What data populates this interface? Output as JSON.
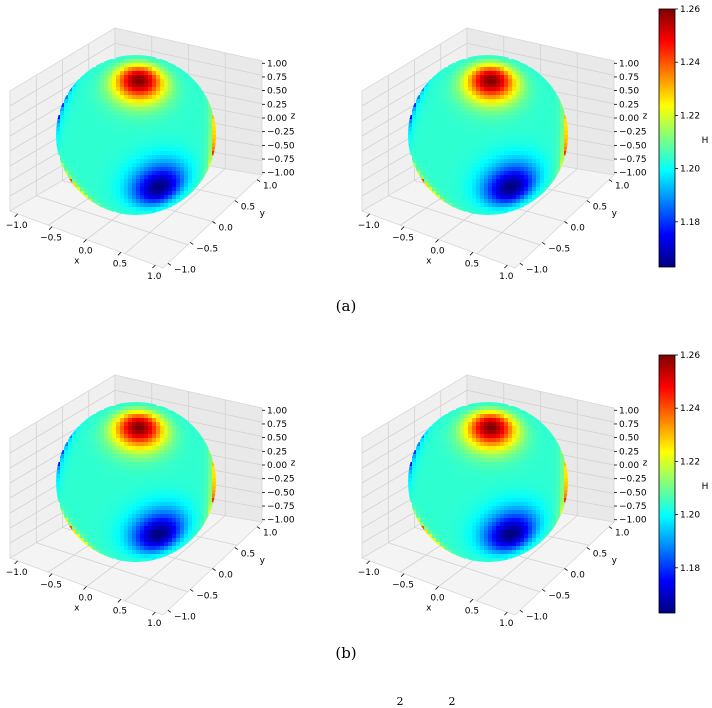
{
  "figure": {
    "captions": [
      "(a)",
      "(b)"
    ],
    "bottom_fragment": [
      "2",
      "2"
    ]
  },
  "colorscale": {
    "name": "jet",
    "stops": [
      "#00007f",
      "#0000ff",
      "#007fff",
      "#00ffff",
      "#7fff7f",
      "#ffff00",
      "#ff7f00",
      "#ff0000",
      "#7f0000"
    ]
  },
  "chart_data": [
    {
      "type": "surface",
      "panel": "a-left",
      "shape": "sphere",
      "xlabel": "x",
      "ylabel": "y",
      "zlabel": "z",
      "xlim": [
        -1.0,
        1.0
      ],
      "ylim": [
        -1.0,
        1.0
      ],
      "zlim": [
        -1.0,
        1.0
      ],
      "x_ticks": [
        "−1.0",
        "−0.5",
        "0.0",
        "0.5",
        "1.0"
      ],
      "y_ticks": [
        "−1.0",
        "−0.5",
        "0.0",
        "0.5",
        "1.0"
      ],
      "z_ticks": [
        "1.00",
        "0.75",
        "0.50",
        "0.25",
        "0.00",
        "−0.25",
        "−0.50",
        "−0.75",
        "−1.00"
      ],
      "grid": true,
      "color_variable": "H",
      "hot_spots": [
        {
          "theta": 0.16,
          "phi": -0.4
        },
        {
          "theta": 2.25,
          "phi": -1.9
        },
        {
          "theta": 1.65,
          "phi": 0.95
        }
      ],
      "cold_spots": [
        {
          "theta": 1.65,
          "phi": -0.35
        },
        {
          "theta": 1.45,
          "phi": -2.55
        },
        {
          "theta": 1.6,
          "phi": 2.2
        },
        {
          "theta": 2.9,
          "phi": 0.3
        }
      ]
    },
    {
      "type": "surface",
      "panel": "a-right",
      "shape": "sphere",
      "xlabel": "x",
      "ylabel": "y",
      "zlabel": "z",
      "xlim": [
        -1.0,
        1.0
      ],
      "ylim": [
        -1.0,
        1.0
      ],
      "zlim": [
        -1.0,
        1.0
      ],
      "x_ticks": [
        "−1.0",
        "−0.5",
        "0.0",
        "0.5",
        "1.0"
      ],
      "y_ticks": [
        "−1.0",
        "−0.5",
        "0.0",
        "0.5",
        "1.0"
      ],
      "z_ticks": [
        "1.00",
        "0.75",
        "0.50",
        "0.25",
        "0.00",
        "−0.25",
        "−0.50",
        "−0.75",
        "−1.00"
      ],
      "grid": true,
      "color_variable": "H",
      "hot_spots": [
        {
          "theta": 0.16,
          "phi": -0.4
        },
        {
          "theta": 2.25,
          "phi": -1.9
        },
        {
          "theta": 1.65,
          "phi": 0.95
        }
      ],
      "cold_spots": [
        {
          "theta": 1.65,
          "phi": -0.35
        },
        {
          "theta": 1.45,
          "phi": -2.55
        },
        {
          "theta": 1.6,
          "phi": 2.2
        },
        {
          "theta": 2.9,
          "phi": 0.3
        }
      ]
    },
    {
      "type": "colorbar",
      "panel": "a-colorbar",
      "label": "H",
      "range": [
        1.163,
        1.26
      ],
      "ticks": [
        "1.26",
        "1.24",
        "1.22",
        "1.20",
        "1.18"
      ],
      "tick_values": [
        1.26,
        1.24,
        1.22,
        1.2,
        1.18
      ]
    },
    {
      "type": "surface",
      "panel": "b-left",
      "shape": "sphere",
      "xlabel": "x",
      "ylabel": "y",
      "zlabel": "z",
      "xlim": [
        -1.0,
        1.0
      ],
      "ylim": [
        -1.0,
        1.0
      ],
      "zlim": [
        -1.0,
        1.0
      ],
      "x_ticks": [
        "−1.0",
        "−0.5",
        "0.0",
        "0.5",
        "1.0"
      ],
      "y_ticks": [
        "−1.0",
        "−0.5",
        "0.0",
        "0.5",
        "1.0"
      ],
      "z_ticks": [
        "1.00",
        "0.75",
        "0.50",
        "0.25",
        "0.00",
        "−0.25",
        "−0.50",
        "−0.75",
        "−1.00"
      ],
      "grid": true,
      "color_variable": "H",
      "hot_spots": [
        {
          "theta": 0.16,
          "phi": -0.4
        },
        {
          "theta": 2.25,
          "phi": -1.9
        },
        {
          "theta": 1.65,
          "phi": 0.95
        }
      ],
      "cold_spots": [
        {
          "theta": 1.65,
          "phi": -0.35
        },
        {
          "theta": 1.45,
          "phi": -2.55
        },
        {
          "theta": 1.6,
          "phi": 2.2
        },
        {
          "theta": 2.9,
          "phi": 0.3
        }
      ]
    },
    {
      "type": "surface",
      "panel": "b-right",
      "shape": "sphere",
      "xlabel": "x",
      "ylabel": "y",
      "zlabel": "z",
      "xlim": [
        -1.0,
        1.0
      ],
      "ylim": [
        -1.0,
        1.0
      ],
      "zlim": [
        -1.0,
        1.0
      ],
      "x_ticks": [
        "−1.0",
        "−0.5",
        "0.0",
        "0.5",
        "1.0"
      ],
      "y_ticks": [
        "−1.0",
        "−0.5",
        "0.0",
        "0.5",
        "1.0"
      ],
      "z_ticks": [
        "1.00",
        "0.75",
        "0.50",
        "0.25",
        "0.00",
        "−0.25",
        "−0.50",
        "−0.75",
        "−1.00"
      ],
      "grid": true,
      "color_variable": "H",
      "hot_spots": [
        {
          "theta": 0.16,
          "phi": -0.4
        },
        {
          "theta": 2.25,
          "phi": -1.9
        },
        {
          "theta": 1.65,
          "phi": 0.95
        }
      ],
      "cold_spots": [
        {
          "theta": 1.65,
          "phi": -0.35
        },
        {
          "theta": 1.45,
          "phi": -2.55
        },
        {
          "theta": 1.6,
          "phi": 2.2
        },
        {
          "theta": 2.9,
          "phi": 0.3
        }
      ]
    },
    {
      "type": "colorbar",
      "panel": "b-colorbar",
      "label": "H",
      "range": [
        1.163,
        1.26
      ],
      "ticks": [
        "1.26",
        "1.24",
        "1.22",
        "1.20",
        "1.18"
      ],
      "tick_values": [
        1.26,
        1.24,
        1.22,
        1.2,
        1.18
      ]
    }
  ]
}
